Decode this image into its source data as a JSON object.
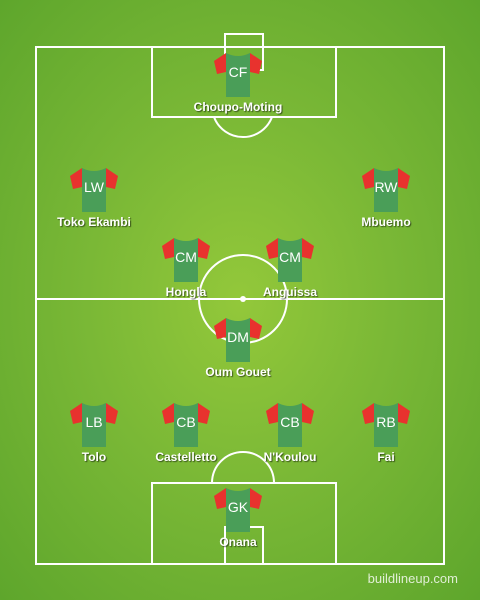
{
  "colors": {
    "shirt_body": "#4a9e58",
    "shirt_sleeves": "#e8322e",
    "line": "#ffffff"
  },
  "players": [
    {
      "pos": "CF",
      "name": "Choupo-Moting"
    },
    {
      "pos": "LW",
      "name": "Toko Ekambi"
    },
    {
      "pos": "RW",
      "name": "Mbuemo"
    },
    {
      "pos": "CM",
      "name": "Hongla"
    },
    {
      "pos": "CM",
      "name": "Anguissa"
    },
    {
      "pos": "DM",
      "name": "Oum Gouet"
    },
    {
      "pos": "LB",
      "name": "Tolo"
    },
    {
      "pos": "CB",
      "name": "Castelletto"
    },
    {
      "pos": "CB",
      "name": "N'Koulou"
    },
    {
      "pos": "RB",
      "name": "Fai"
    },
    {
      "pos": "GK",
      "name": "Onana"
    }
  ],
  "watermark": "buildlineup.com"
}
